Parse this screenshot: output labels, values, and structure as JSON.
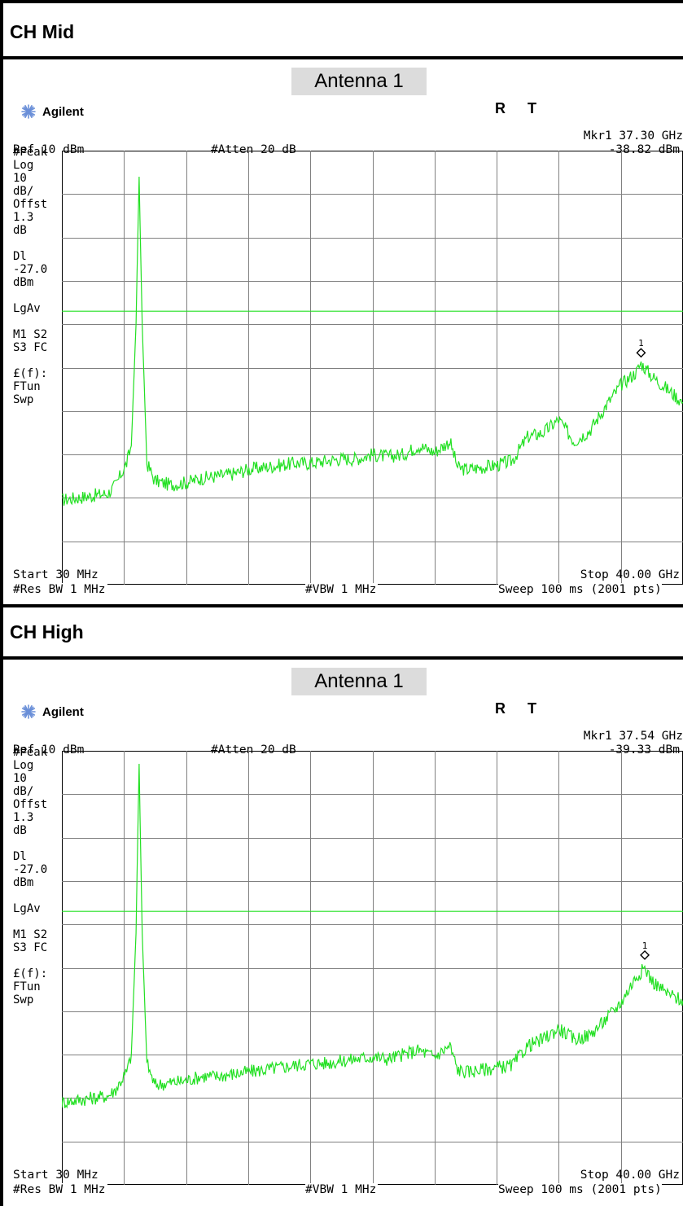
{
  "sections": [
    {
      "title": "CH  Mid",
      "antenna": "Antenna  1",
      "brand": "Agilent",
      "flag_r": "R",
      "flag_t": "T",
      "marker": "Mkr1  37.30 GHz",
      "marker_value": "-38.82 dBm",
      "ref": "Ref 10 dBm",
      "atten": "#Atten 20 dB",
      "left": [
        "#Peak",
        "Log",
        "10",
        "dB/",
        "Offst",
        "1.3",
        "dB",
        "",
        "Dl",
        "-27.0",
        "dBm",
        "",
        "LgAv",
        "",
        "M1  S2",
        "S3  FC",
        "",
        "£(f):",
        "FTun",
        "Swp"
      ],
      "start": "Start 30 MHz",
      "stop": "Stop 40.00 GHz",
      "res_bw": "#Res BW 1 MHz",
      "vbw": "#VBW 1 MHz",
      "sweep": "Sweep 100 ms (2001 pts)",
      "marker_label": "1"
    },
    {
      "title": "CH  High",
      "antenna": "Antenna  1",
      "brand": "Agilent",
      "flag_r": "R",
      "flag_t": "T",
      "marker": "Mkr1  37.54 GHz",
      "marker_value": "-39.33 dBm",
      "ref": "Ref 10 dBm",
      "atten": "#Atten 20 dB",
      "left": [
        "#Peak",
        "Log",
        "10",
        "dB/",
        "Offst",
        "1.3",
        "dB",
        "",
        "Dl",
        "-27.0",
        "dBm",
        "",
        "LgAv",
        "",
        "M1  S2",
        "S3  FC",
        "",
        "£(f):",
        "FTun",
        "Swp"
      ],
      "start": "Start 30 MHz",
      "stop": "Stop 40.00 GHz",
      "res_bw": "#Res BW 1 MHz",
      "vbw": "#VBW 1 MHz",
      "sweep": "Sweep 100 ms (2001 pts)",
      "marker_label": "1"
    }
  ],
  "colors": {
    "trace": "#22e022",
    "grid": "#808080",
    "limit_line": "#22e022",
    "antenna_bg": "#dcdcdc"
  },
  "chart_data": [
    {
      "type": "line",
      "xlim": [
        0.03,
        40.0
      ],
      "ylim": [
        -90,
        10
      ],
      "x_unit": "GHz",
      "y_unit": "dBm",
      "grid": true,
      "limit_line": -27.0,
      "marker": {
        "x": 37.3,
        "y": -38.82
      },
      "series": [
        {
          "x": [
            0.03,
            1,
            2,
            3,
            3.5,
            4.2,
            4.5,
            4.8,
            5,
            5.2,
            5.5,
            6,
            7,
            8,
            9,
            10,
            11,
            12,
            13,
            14,
            15,
            16,
            17,
            18,
            19,
            20,
            21,
            22,
            23,
            24,
            25,
            25.5,
            26,
            27,
            28,
            29,
            30,
            31,
            32,
            33,
            34,
            35,
            36,
            37,
            37.3,
            38,
            39,
            40
          ],
          "y": [
            -70.5,
            -70,
            -69.5,
            -69,
            -67,
            -62,
            -58,
            -30,
            4,
            -30,
            -62,
            -66,
            -67,
            -66.5,
            -65.5,
            -65,
            -64.5,
            -63.5,
            -63,
            -62.5,
            -62,
            -62,
            -61.5,
            -61,
            -61,
            -60,
            -60.5,
            -60,
            -58,
            -59.5,
            -57,
            -63,
            -63.5,
            -63,
            -62.5,
            -61.5,
            -56,
            -55,
            -52,
            -57,
            -54.5,
            -49,
            -44,
            -41,
            -39,
            -42,
            -45,
            -48
          ]
        }
      ]
    },
    {
      "type": "line",
      "xlim": [
        0.03,
        40.0
      ],
      "ylim": [
        -90,
        10
      ],
      "x_unit": "GHz",
      "y_unit": "dBm",
      "grid": true,
      "limit_line": -27.0,
      "marker": {
        "x": 37.54,
        "y": -39.33
      },
      "series": [
        {
          "x": [
            0.03,
            1,
            2,
            3,
            3.5,
            4.2,
            4.5,
            4.8,
            5,
            5.2,
            5.5,
            6,
            7,
            8,
            9,
            10,
            11,
            12,
            13,
            14,
            15,
            16,
            17,
            18,
            19,
            20,
            21,
            22,
            23,
            24,
            25,
            25.5,
            26,
            27,
            28,
            29,
            30,
            31,
            32,
            33,
            34,
            35,
            36,
            37,
            37.54,
            38,
            39,
            40
          ],
          "y": [
            -71,
            -70.5,
            -70,
            -69.5,
            -68,
            -64,
            -60,
            -32,
            7,
            -32,
            -62,
            -67,
            -66.5,
            -66,
            -65,
            -65,
            -64.5,
            -64,
            -63.5,
            -63,
            -62.5,
            -62,
            -62,
            -61.5,
            -61,
            -60.5,
            -61,
            -60,
            -59,
            -60.5,
            -58,
            -63.5,
            -64,
            -63.5,
            -63,
            -62.5,
            -58,
            -56.5,
            -54,
            -56.5,
            -55.5,
            -52,
            -48,
            -42,
            -40,
            -43,
            -46,
            -47.5
          ]
        }
      ]
    }
  ]
}
